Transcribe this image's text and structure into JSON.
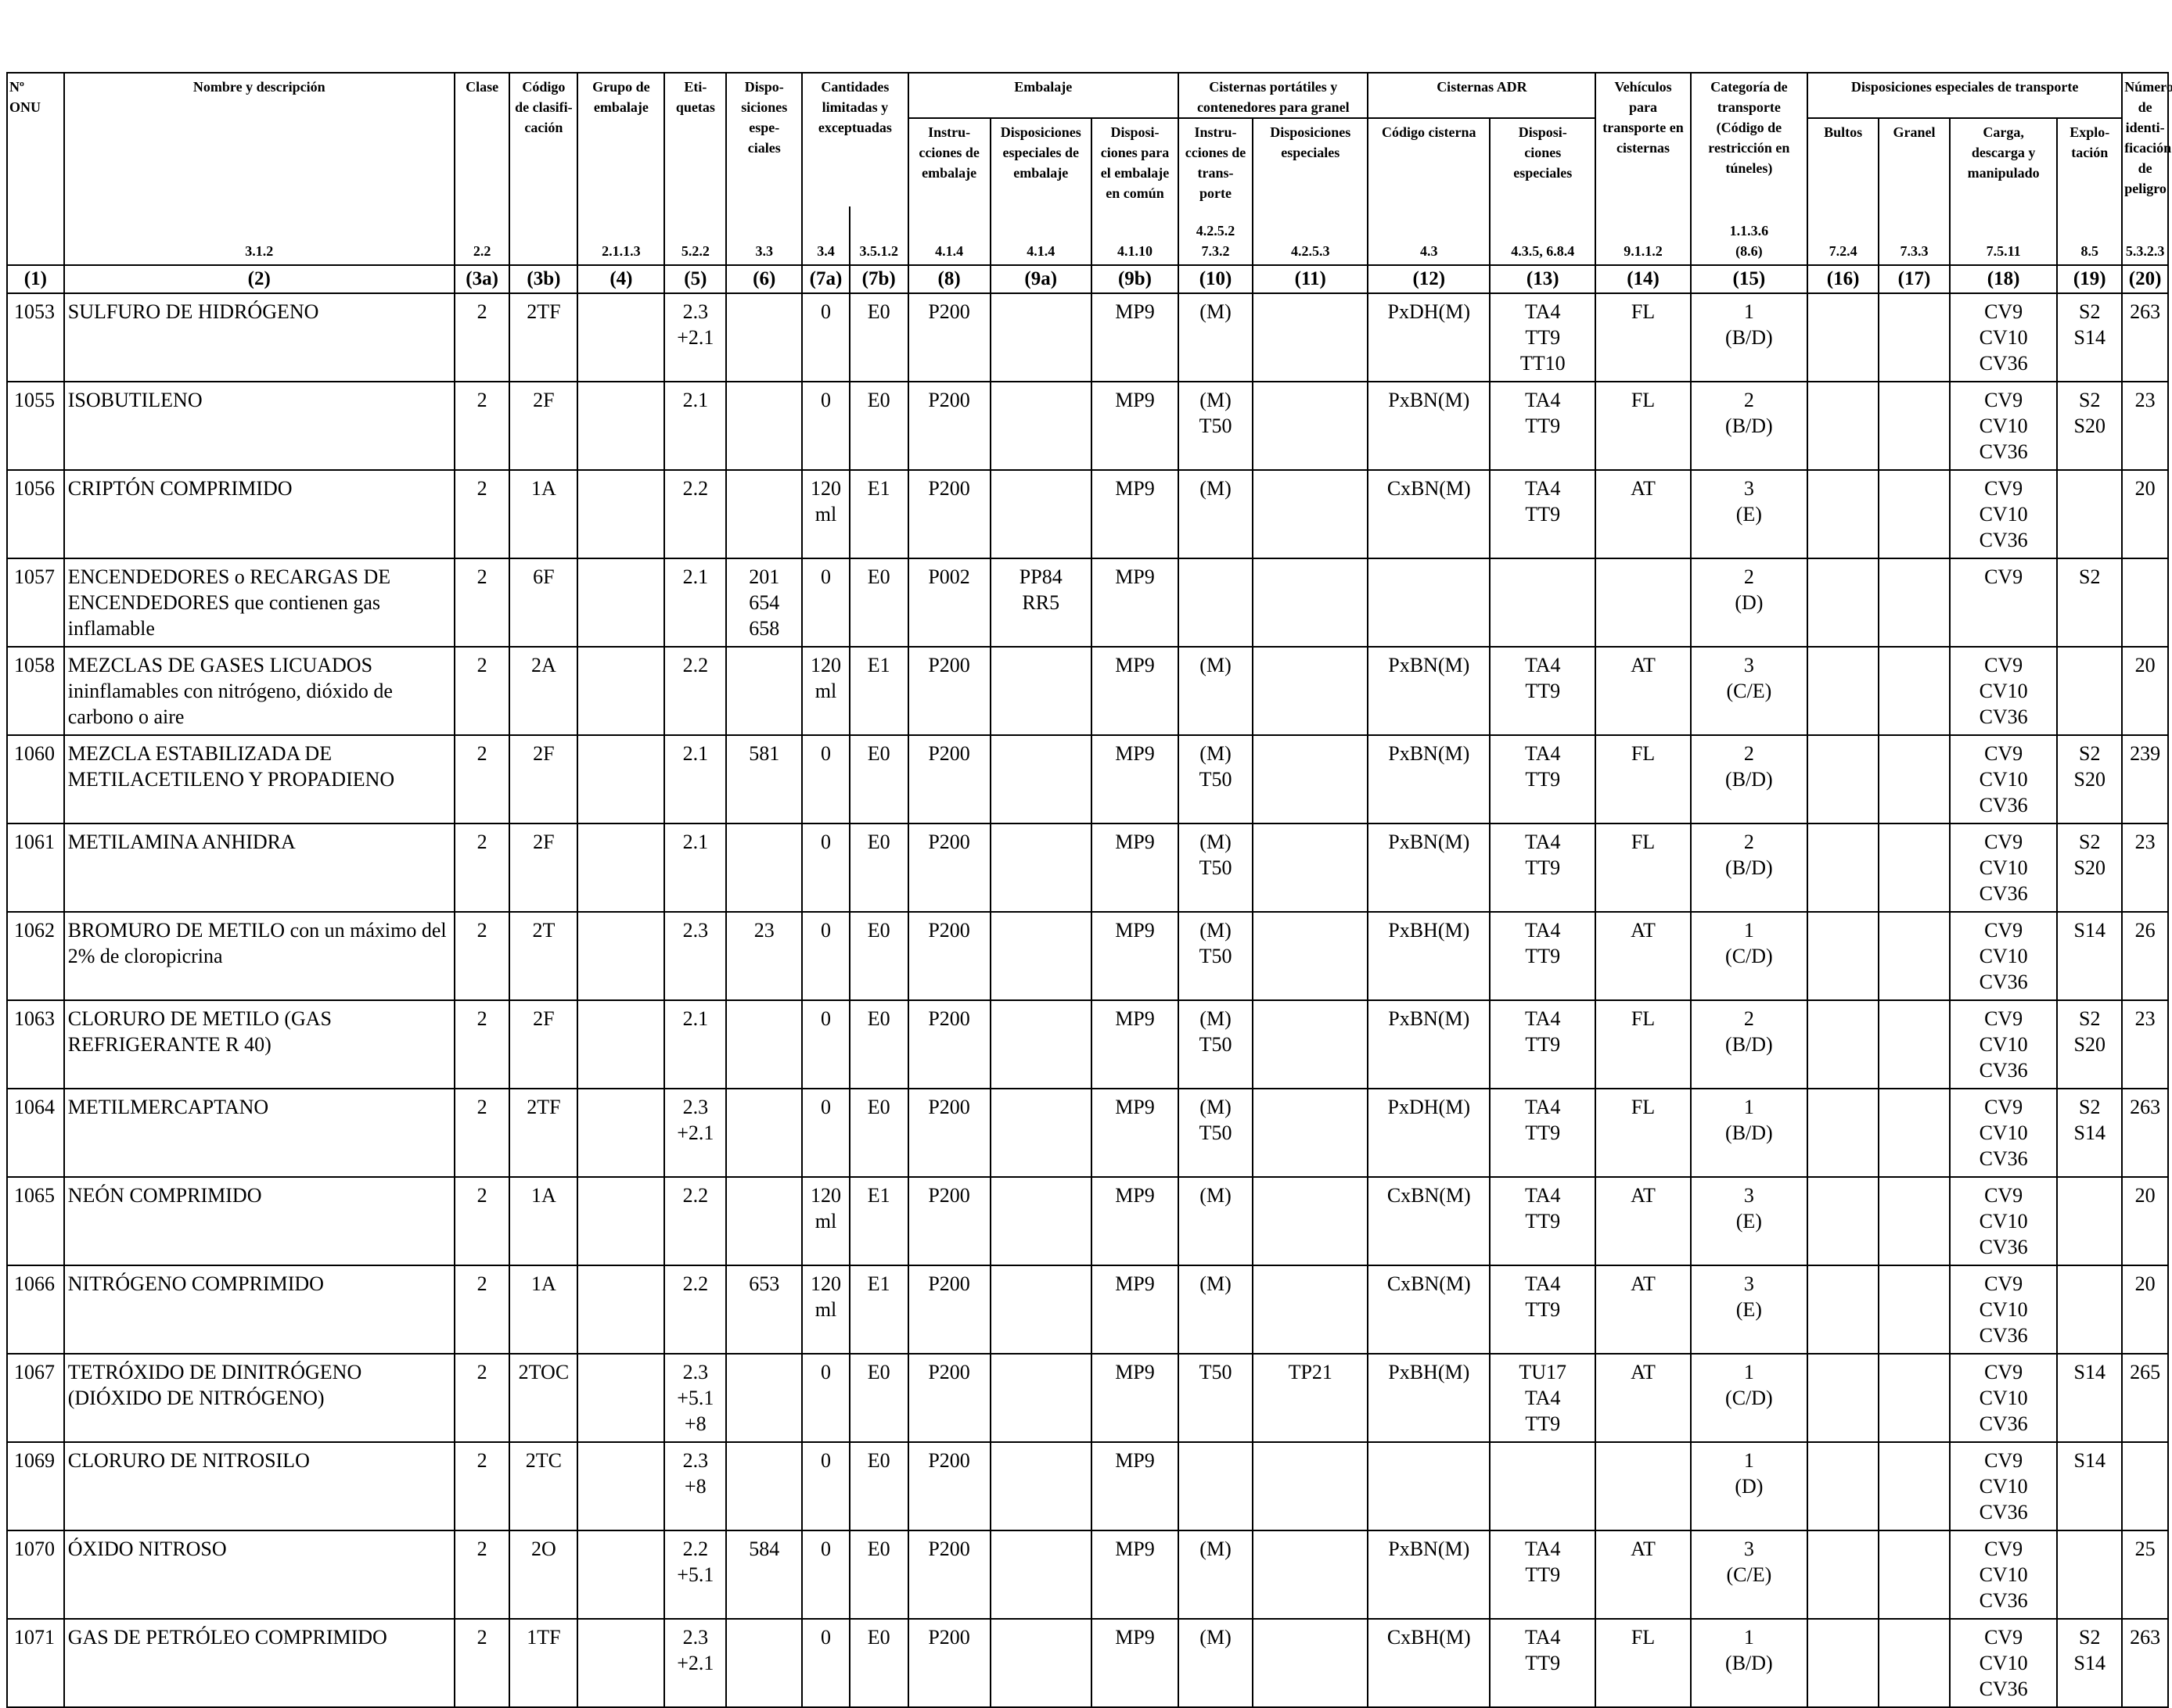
{
  "headers": {
    "onu": "Nº\nONU",
    "nombre": "Nombre y descripción",
    "clase": "Clase",
    "codigo": "Código\nde clasifi-\ncación",
    "grupo": "Grupo de\nembalaje",
    "etiquetas": "Eti-\nquetas",
    "disposiciones": "Dispo-\nsiciones\nespe-\nciales",
    "cantidades": "Cantidades\nlimitadas y\nexceptuadas",
    "embalaje": "Embalaje",
    "instrucciones_embalaje": "Instru-\ncciones de\nembalaje",
    "disp_esp_embalaje": "Disposiciones\nespeciales de\nembalaje",
    "disp_embalaje_comun": "Disposi-\nciones para\nel embalaje\nen común",
    "cisternas_portatiles": "Cisternas portátiles y\ncontenedores para granel",
    "instrucciones_transporte": "Instru-\ncciones de\ntrans-\nporte",
    "disp_especiales_cist": "Disposiciones\nespeciales",
    "cisternas_adr": "Cisternas ADR",
    "codigo_cisterna": "Código cisterna",
    "disp_especiales_adr": "Disposi-\nciones\nespeciales",
    "vehiculos": "Vehículos\npara\ntransporte en\ncisternas",
    "categoria": "Categoría de\ntransporte\n(Código de\nrestricción en\ntúneles)",
    "disp_transporte": "Disposiciones especiales de transporte",
    "bultos": "Bultos",
    "granel": "Granel",
    "carga": "Carga,\ndescarga y\nmanipulado",
    "explotacion": "Explo-\ntación",
    "numero_peligro": "Número\nde identi-\nficación\nde peligro"
  },
  "refs": [
    "",
    "3.1.2",
    "2.2",
    "",
    "2.1.1.3",
    "5.2.2",
    "3.3",
    "3.4",
    "3.5.1.2",
    "4.1.4",
    "4.1.4",
    "4.1.10",
    "4.2.5.2\n7.3.2",
    "4.2.5.3",
    "4.3",
    "4.3.5, 6.8.4",
    "9.1.1.2",
    "1.1.3.6\n(8.6)",
    "7.2.4",
    "7.3.3",
    "7.5.11",
    "8.5",
    "5.3.2.3"
  ],
  "col_numbers": [
    "(1)",
    "(2)",
    "(3a)",
    "(3b)",
    "(4)",
    "(5)",
    "(6)",
    "(7a)",
    "(7b)",
    "(8)",
    "(9a)",
    "(9b)",
    "(10)",
    "(11)",
    "(12)",
    "(13)",
    "(14)",
    "(15)",
    "(16)",
    "(17)",
    "(18)",
    "(19)",
    "(20)"
  ],
  "rows": [
    [
      "1053",
      "SULFURO DE HIDRÓGENO",
      "2",
      "2TF",
      "",
      "2.3\n+2.1",
      "",
      "0",
      "E0",
      "P200",
      "",
      "MP9",
      "(M)",
      "",
      "PxDH(M)",
      "TA4\nTT9\nTT10",
      "FL",
      "1\n(B/D)",
      "",
      "",
      "CV9\nCV10\nCV36",
      "S2\nS14",
      "263"
    ],
    [
      "1055",
      "ISOBUTILENO",
      "2",
      "2F",
      "",
      "2.1",
      "",
      "0",
      "E0",
      "P200",
      "",
      "MP9",
      "(M)\nT50",
      "",
      "PxBN(M)",
      "TA4\nTT9",
      "FL",
      "2\n(B/D)",
      "",
      "",
      "CV9\nCV10\nCV36",
      "S2\nS20",
      "23"
    ],
    [
      "1056",
      "CRIPTÓN COMPRIMIDO",
      "2",
      "1A",
      "",
      "2.2",
      "",
      "120\nml",
      "E1",
      "P200",
      "",
      "MP9",
      "(M)",
      "",
      "CxBN(M)",
      "TA4\nTT9",
      "AT",
      "3\n(E)",
      "",
      "",
      "CV9\nCV10\nCV36",
      "",
      "20"
    ],
    [
      "1057",
      "ENCENDEDORES o RECARGAS DE ENCENDEDORES que contienen gas inflamable",
      "2",
      "6F",
      "",
      "2.1",
      "201\n654\n658",
      "0",
      "E0",
      "P002",
      "PP84\nRR5",
      "MP9",
      "",
      "",
      "",
      "",
      "",
      "2\n(D)",
      "",
      "",
      "CV9",
      "S2",
      ""
    ],
    [
      "1058",
      "MEZCLAS DE GASES LICUADOS ininflamables con nitrógeno, dióxido de carbono o aire",
      "2",
      "2A",
      "",
      "2.2",
      "",
      "120\nml",
      "E1",
      "P200",
      "",
      "MP9",
      "(M)",
      "",
      "PxBN(M)",
      "TA4\nTT9",
      "AT",
      "3\n(C/E)",
      "",
      "",
      "CV9\nCV10\nCV36",
      "",
      "20"
    ],
    [
      "1060",
      "MEZCLA ESTABILIZADA DE METILACETILENO Y PROPADIENO",
      "2",
      "2F",
      "",
      "2.1",
      "581",
      "0",
      "E0",
      "P200",
      "",
      "MP9",
      "(M)\nT50",
      "",
      "PxBN(M)",
      "TA4\nTT9",
      "FL",
      "2\n(B/D)",
      "",
      "",
      "CV9\nCV10\nCV36",
      "S2\nS20",
      "239"
    ],
    [
      "1061",
      "METILAMINA ANHIDRA",
      "2",
      "2F",
      "",
      "2.1",
      "",
      "0",
      "E0",
      "P200",
      "",
      "MP9",
      "(M)\nT50",
      "",
      "PxBN(M)",
      "TA4\nTT9",
      "FL",
      "2\n(B/D)",
      "",
      "",
      "CV9\nCV10\nCV36",
      "S2\nS20",
      "23"
    ],
    [
      "1062",
      "BROMURO DE METILO con un máximo del 2% de cloropicrina",
      "2",
      "2T",
      "",
      "2.3",
      "23",
      "0",
      "E0",
      "P200",
      "",
      "MP9",
      "(M)\nT50",
      "",
      "PxBH(M)",
      "TA4\nTT9",
      "AT",
      "1\n(C/D)",
      "",
      "",
      "CV9\nCV10\nCV36",
      "S14",
      "26"
    ],
    [
      "1063",
      "CLORURO DE METILO (GAS REFRIGERANTE R 40)",
      "2",
      "2F",
      "",
      "2.1",
      "",
      "0",
      "E0",
      "P200",
      "",
      "MP9",
      "(M)\nT50",
      "",
      "PxBN(M)",
      "TA4\nTT9",
      "FL",
      "2\n(B/D)",
      "",
      "",
      "CV9\nCV10\nCV36",
      "S2\nS20",
      "23"
    ],
    [
      "1064",
      "METILMERCAPTANO",
      "2",
      "2TF",
      "",
      "2.3\n+2.1",
      "",
      "0",
      "E0",
      "P200",
      "",
      "MP9",
      "(M)\nT50",
      "",
      "PxDH(M)",
      "TA4\nTT9",
      "FL",
      "1\n(B/D)",
      "",
      "",
      "CV9\nCV10\nCV36",
      "S2\nS14",
      "263"
    ],
    [
      "1065",
      "NEÓN COMPRIMIDO",
      "2",
      "1A",
      "",
      "2.2",
      "",
      "120\nml",
      "E1",
      "P200",
      "",
      "MP9",
      "(M)",
      "",
      "CxBN(M)",
      "TA4\nTT9",
      "AT",
      "3\n(E)",
      "",
      "",
      "CV9\nCV10\nCV36",
      "",
      "20"
    ],
    [
      "1066",
      "NITRÓGENO COMPRIMIDO",
      "2",
      "1A",
      "",
      "2.2",
      "653",
      "120\nml",
      "E1",
      "P200",
      "",
      "MP9",
      "(M)",
      "",
      "CxBN(M)",
      "TA4\nTT9",
      "AT",
      "3\n(E)",
      "",
      "",
      "CV9\nCV10\nCV36",
      "",
      "20"
    ],
    [
      "1067",
      "TETRÓXIDO DE DINITRÓGENO (DIÓXIDO DE NITRÓGENO)",
      "2",
      "2TOC",
      "",
      "2.3\n+5.1\n+8",
      "",
      "0",
      "E0",
      "P200",
      "",
      "MP9",
      "T50",
      "TP21",
      "PxBH(M)",
      "TU17\nTA4\nTT9",
      "AT",
      "1\n(C/D)",
      "",
      "",
      "CV9\nCV10\nCV36",
      "S14",
      "265"
    ],
    [
      "1069",
      "CLORURO DE NITROSILO",
      "2",
      "2TC",
      "",
      "2.3\n+8",
      "",
      "0",
      "E0",
      "P200",
      "",
      "MP9",
      "",
      "",
      "",
      "",
      "",
      "1\n(D)",
      "",
      "",
      "CV9\nCV10\nCV36",
      "S14",
      ""
    ],
    [
      "1070",
      "ÓXIDO NITROSO",
      "2",
      "2O",
      "",
      "2.2\n+5.1",
      "584",
      "0",
      "E0",
      "P200",
      "",
      "MP9",
      "(M)",
      "",
      "PxBN(M)",
      "TA4\nTT9",
      "AT",
      "3\n(C/E)",
      "",
      "",
      "CV9\nCV10\nCV36",
      "",
      "25"
    ],
    [
      "1071",
      "GAS DE PETRÓLEO COMPRIMIDO",
      "2",
      "1TF",
      "",
      "2.3\n+2.1",
      "",
      "0",
      "E0",
      "P200",
      "",
      "MP9",
      "(M)",
      "",
      "CxBH(M)",
      "TA4\nTT9",
      "FL",
      "1\n(B/D)",
      "",
      "",
      "CV9\nCV10\nCV36",
      "S2\nS14",
      "263"
    ]
  ]
}
